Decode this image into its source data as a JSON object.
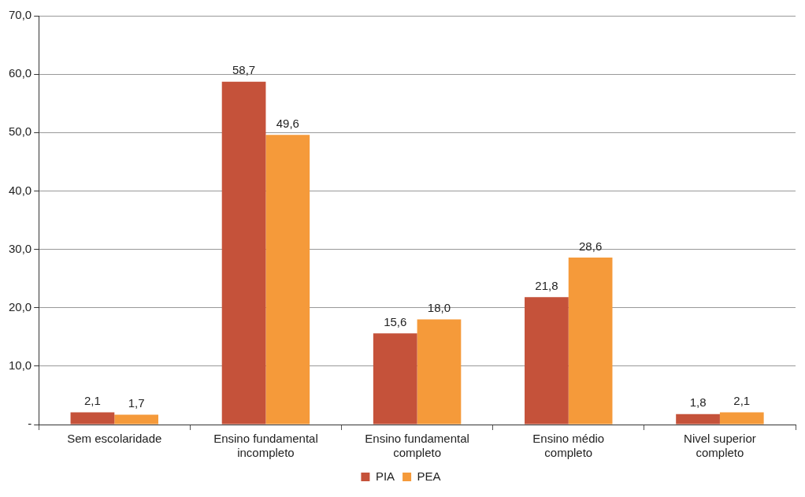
{
  "chart_data": {
    "type": "bar",
    "categories": [
      "Sem escolaridade",
      "Ensino fundamental incompleto",
      "Ensino fundamental completo",
      "Ensino médio completo",
      "Nivel superior completo"
    ],
    "series": [
      {
        "name": "PIA",
        "color": "#c5523a",
        "values": [
          2.1,
          58.7,
          15.6,
          21.8,
          1.8
        ],
        "value_labels": [
          "2,1",
          "58,7",
          "15,6",
          "21,8",
          "1,8"
        ]
      },
      {
        "name": "PEA",
        "color": "#f59a3a",
        "values": [
          1.7,
          49.6,
          18.0,
          28.6,
          2.1
        ],
        "value_labels": [
          "1,7",
          "49,6",
          "18,0",
          "28,6",
          "2,1"
        ]
      }
    ],
    "ylim": [
      0,
      70
    ],
    "yticks": [
      {
        "value": 0,
        "label": "-"
      },
      {
        "value": 10,
        "label": "10,0"
      },
      {
        "value": 20,
        "label": "20,0"
      },
      {
        "value": 30,
        "label": "30,0"
      },
      {
        "value": 40,
        "label": "40,0"
      },
      {
        "value": 50,
        "label": "50,0"
      },
      {
        "value": 60,
        "label": "60,0"
      },
      {
        "value": 70,
        "label": "70,0"
      }
    ],
    "grid": "y",
    "legend": "bottom"
  }
}
